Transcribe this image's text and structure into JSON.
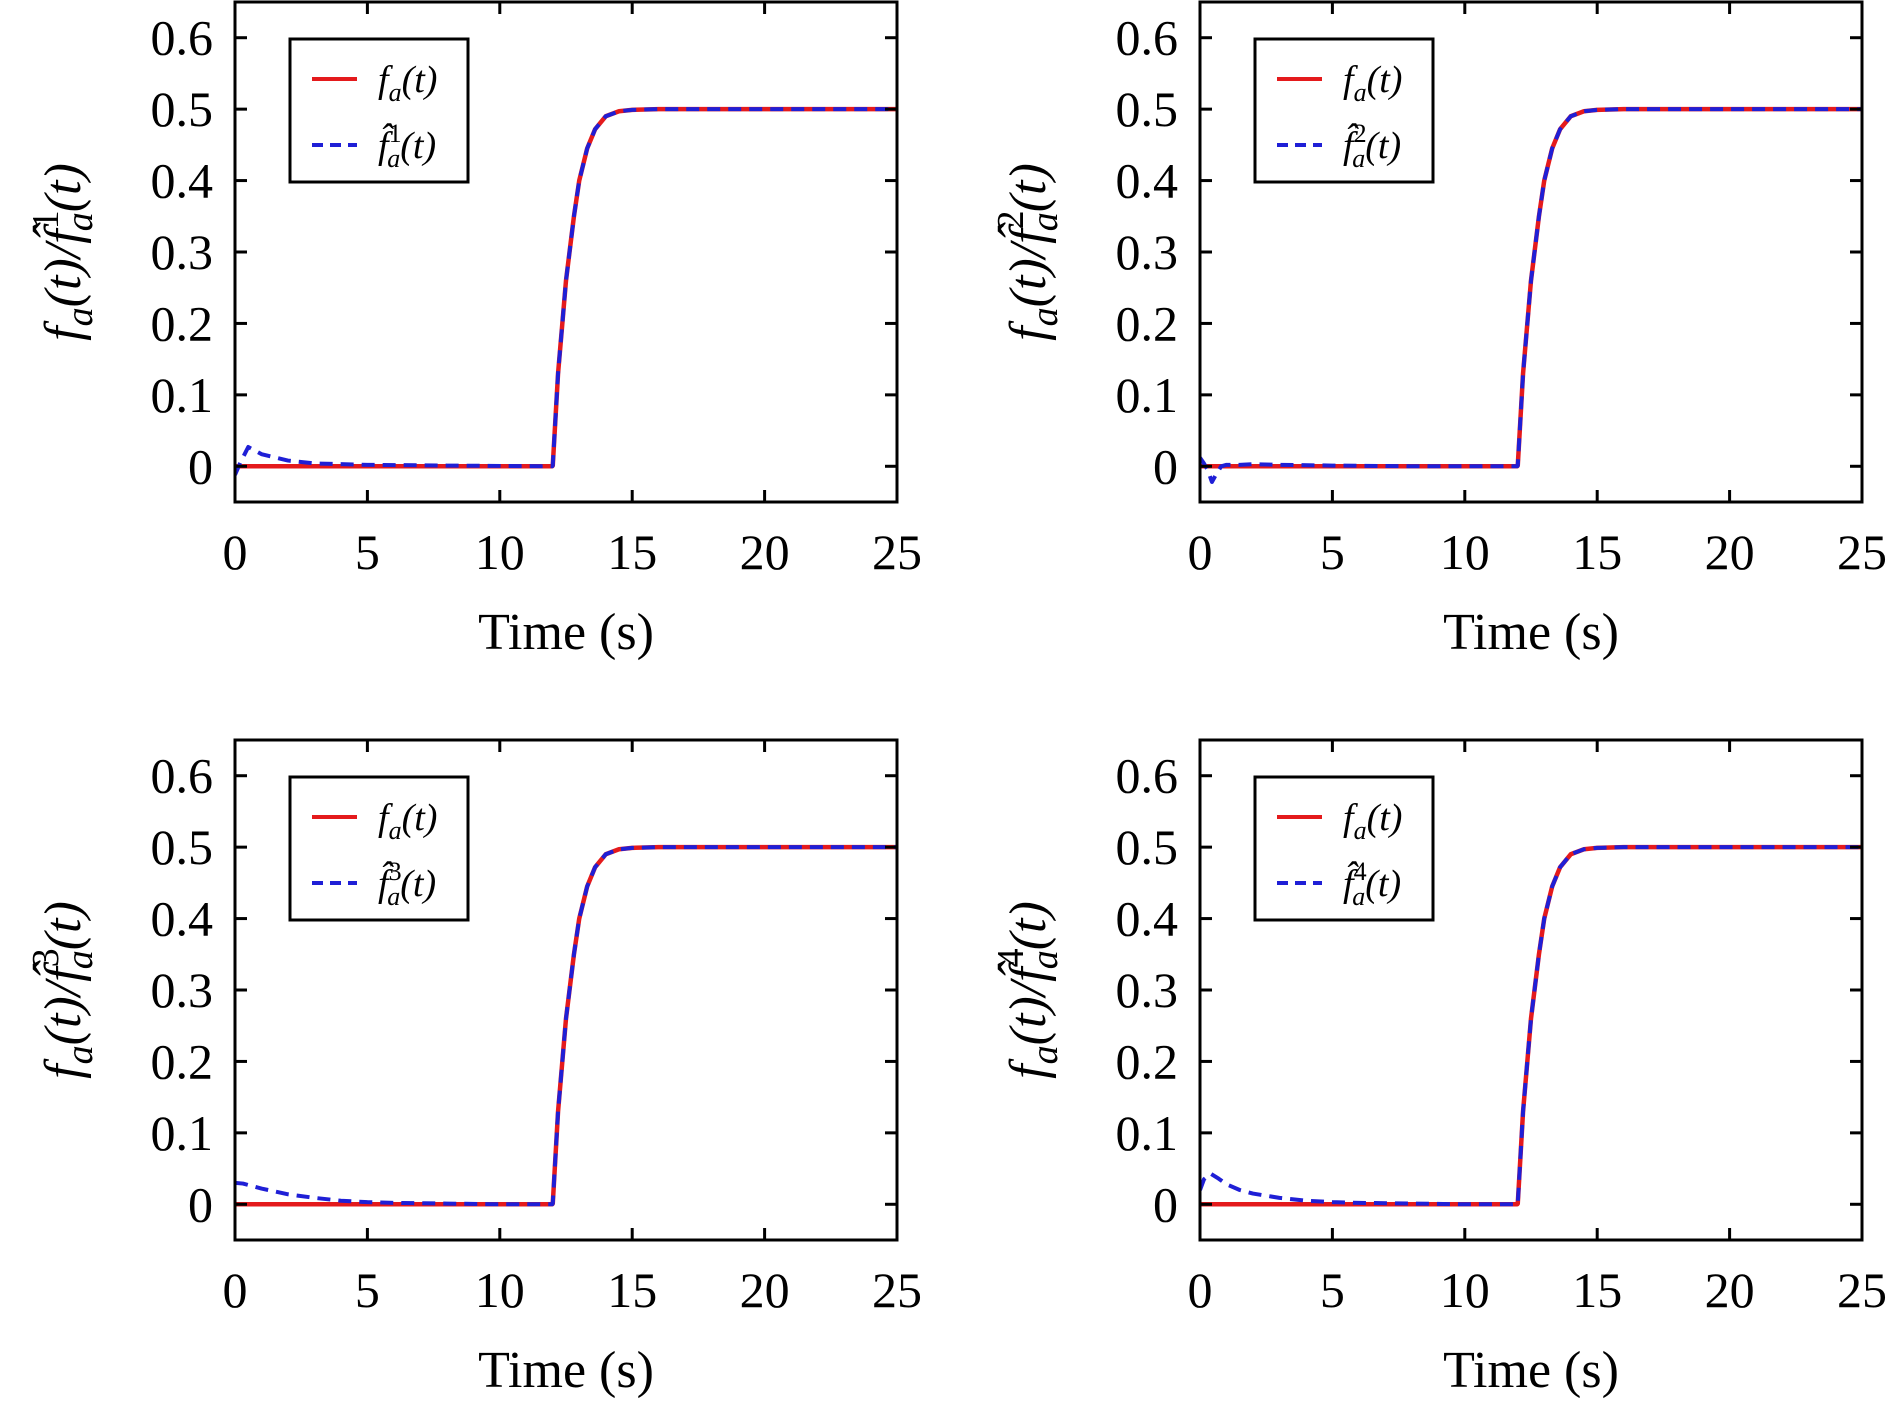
{
  "colors": {
    "true_fault": "#e41a1c",
    "estimate": "#1f1fd6",
    "axes": "#000000",
    "background": "#ffffff"
  },
  "chart_data": [
    {
      "type": "line",
      "ylabel": "f_a(t)/f̂_a^1(t)",
      "xlabel": "Time (s)",
      "xlim": [
        0,
        25
      ],
      "ylim": [
        -0.05,
        0.65
      ],
      "xticks": [
        "0",
        "5",
        "10",
        "15",
        "20",
        "25"
      ],
      "yticks": [
        "0",
        "0.1",
        "0.2",
        "0.3",
        "0.4",
        "0.5",
        "0.6"
      ],
      "legend_position": "top-left",
      "grid": false,
      "series": [
        {
          "name": "f_a(t)",
          "style": "solid",
          "color": "#e41a1c",
          "x": [
            0,
            11.98,
            12,
            12.2,
            12.5,
            12.8,
            13,
            13.3,
            13.6,
            14,
            14.5,
            15,
            16,
            18,
            20,
            25
          ],
          "y": [
            0,
            0,
            0.001,
            0.13,
            0.26,
            0.35,
            0.4,
            0.445,
            0.472,
            0.49,
            0.497,
            0.499,
            0.5,
            0.5,
            0.5,
            0.5
          ]
        },
        {
          "name": "f̂_a^1(t)",
          "style": "dashed",
          "color": "#1f1fd6",
          "x": [
            0,
            0.2,
            0.5,
            1,
            2,
            3,
            5,
            8,
            11.98,
            12,
            12.2,
            12.5,
            12.8,
            13,
            13.3,
            13.6,
            14,
            14.5,
            15,
            16,
            18,
            20,
            25
          ],
          "y": [
            -0.012,
            0.005,
            0.027,
            0.017,
            0.008,
            0.004,
            0.002,
            0.001,
            0,
            0.001,
            0.13,
            0.26,
            0.35,
            0.4,
            0.445,
            0.472,
            0.49,
            0.497,
            0.499,
            0.5,
            0.5,
            0.5,
            0.5
          ]
        }
      ]
    },
    {
      "type": "line",
      "ylabel": "f_a(t)/f̂_a^2(t)",
      "xlabel": "Time (s)",
      "xlim": [
        0,
        25
      ],
      "ylim": [
        -0.05,
        0.65
      ],
      "xticks": [
        "0",
        "5",
        "10",
        "15",
        "20",
        "25"
      ],
      "yticks": [
        "0",
        "0.1",
        "0.2",
        "0.3",
        "0.4",
        "0.5",
        "0.6"
      ],
      "legend_position": "top-left",
      "grid": false,
      "series": [
        {
          "name": "f_a(t)",
          "style": "solid",
          "color": "#e41a1c",
          "x": [
            0,
            11.98,
            12,
            12.2,
            12.5,
            12.8,
            13,
            13.3,
            13.6,
            14,
            14.5,
            15,
            16,
            18,
            20,
            25
          ],
          "y": [
            0,
            0,
            0.001,
            0.13,
            0.26,
            0.35,
            0.4,
            0.445,
            0.472,
            0.49,
            0.497,
            0.499,
            0.5,
            0.5,
            0.5,
            0.5
          ]
        },
        {
          "name": "f̂_a^2(t)",
          "style": "dashed",
          "color": "#1f1fd6",
          "x": [
            0,
            0.15,
            0.3,
            0.45,
            0.6,
            0.8,
            1,
            1.5,
            2,
            3,
            5,
            8,
            11.98,
            12,
            12.2,
            12.5,
            12.8,
            13,
            13.3,
            13.6,
            14,
            14.5,
            15,
            16,
            18,
            20,
            25
          ],
          "y": [
            0.012,
            0.004,
            -0.006,
            -0.022,
            -0.012,
            0.0,
            0.002,
            0.002,
            0.003,
            0.002,
            0.001,
            0.0,
            0,
            0.001,
            0.13,
            0.26,
            0.35,
            0.4,
            0.445,
            0.472,
            0.49,
            0.497,
            0.499,
            0.5,
            0.5,
            0.5,
            0.5
          ]
        }
      ]
    },
    {
      "type": "line",
      "ylabel": "f_a(t)/f̂_a^3(t)",
      "xlabel": "Time (s)",
      "xlim": [
        0,
        25
      ],
      "ylim": [
        -0.05,
        0.65
      ],
      "xticks": [
        "0",
        "5",
        "10",
        "15",
        "20",
        "25"
      ],
      "yticks": [
        "0",
        "0.1",
        "0.2",
        "0.3",
        "0.4",
        "0.5",
        "0.6"
      ],
      "legend_position": "top-left",
      "grid": false,
      "series": [
        {
          "name": "f_a(t)",
          "style": "solid",
          "color": "#e41a1c",
          "x": [
            0,
            11.98,
            12,
            12.2,
            12.5,
            12.8,
            13,
            13.3,
            13.6,
            14,
            14.5,
            15,
            16,
            18,
            20,
            25
          ],
          "y": [
            0,
            0,
            0.001,
            0.13,
            0.26,
            0.35,
            0.4,
            0.445,
            0.472,
            0.49,
            0.497,
            0.499,
            0.5,
            0.5,
            0.5,
            0.5
          ]
        },
        {
          "name": "f̂_a^3(t)",
          "style": "dashed",
          "color": "#1f1fd6",
          "x": [
            0,
            0.3,
            1,
            2,
            3,
            4,
            5,
            6,
            8,
            10,
            11.98,
            12,
            12.2,
            12.5,
            12.8,
            13,
            13.3,
            13.6,
            14,
            14.5,
            15,
            16,
            18,
            20,
            25
          ],
          "y": [
            0.03,
            0.029,
            0.022,
            0.014,
            0.009,
            0.005,
            0.003,
            0.002,
            0.001,
            0.0,
            0,
            0.001,
            0.13,
            0.26,
            0.35,
            0.4,
            0.445,
            0.472,
            0.49,
            0.497,
            0.499,
            0.5,
            0.5,
            0.5,
            0.5
          ]
        }
      ]
    },
    {
      "type": "line",
      "ylabel": "f_a(t)/f̂_a^4(t)",
      "xlabel": "Time (s)",
      "xlim": [
        0,
        25
      ],
      "ylim": [
        -0.05,
        0.65
      ],
      "xticks": [
        "0",
        "5",
        "10",
        "15",
        "20",
        "25"
      ],
      "yticks": [
        "0",
        "0.1",
        "0.2",
        "0.3",
        "0.4",
        "0.5",
        "0.6"
      ],
      "legend_position": "top-left",
      "grid": false,
      "series": [
        {
          "name": "f_a(t)",
          "style": "solid",
          "color": "#e41a1c",
          "x": [
            0,
            11.98,
            12,
            12.2,
            12.5,
            12.8,
            13,
            13.3,
            13.6,
            14,
            14.5,
            15,
            16,
            18,
            20,
            25
          ],
          "y": [
            0,
            0,
            0.001,
            0.13,
            0.26,
            0.35,
            0.4,
            0.445,
            0.472,
            0.49,
            0.497,
            0.499,
            0.5,
            0.5,
            0.5,
            0.5
          ]
        },
        {
          "name": "f̂_a^4(t)",
          "style": "dashed",
          "color": "#1f1fd6",
          "x": [
            0,
            0.15,
            0.4,
            0.7,
            1,
            1.5,
            2,
            3,
            4,
            5,
            6,
            8,
            10,
            11.98,
            12,
            12.2,
            12.5,
            12.8,
            13,
            13.3,
            13.6,
            14,
            14.5,
            15,
            16,
            18,
            20,
            25
          ],
          "y": [
            0.02,
            0.035,
            0.043,
            0.036,
            0.028,
            0.02,
            0.015,
            0.009,
            0.005,
            0.003,
            0.002,
            0.001,
            0.0,
            0,
            0.001,
            0.13,
            0.26,
            0.35,
            0.4,
            0.445,
            0.472,
            0.49,
            0.497,
            0.499,
            0.5,
            0.5,
            0.5,
            0.5
          ]
        }
      ]
    }
  ]
}
